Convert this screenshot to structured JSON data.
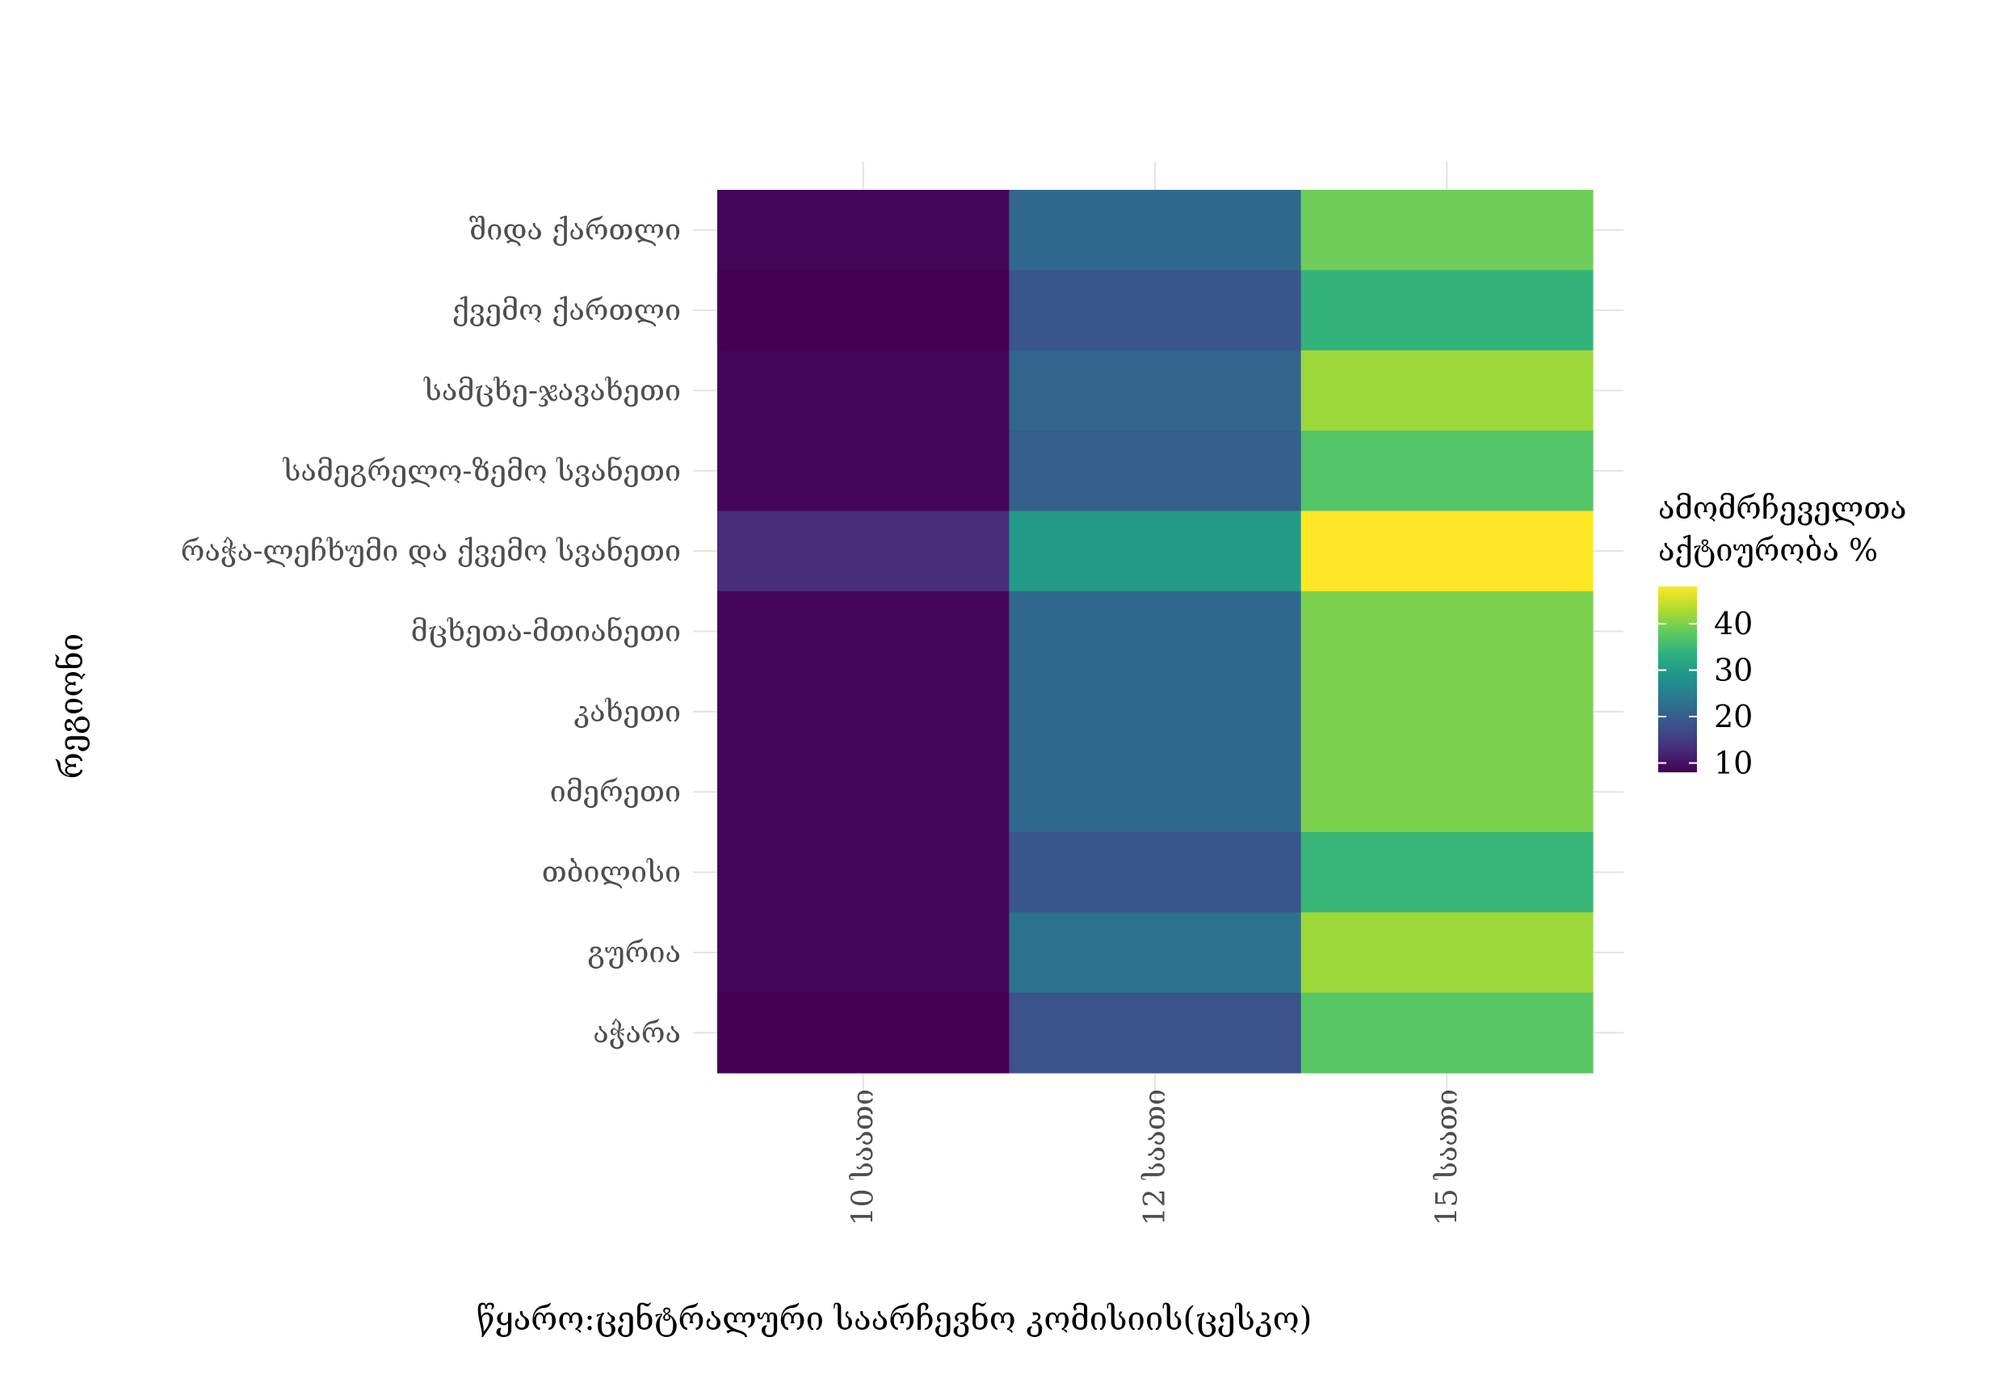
{
  "chart_data": {
    "type": "heatmap",
    "x_categories": [
      "10 საათი",
      "12 საათი",
      "15 საათი"
    ],
    "y_categories": [
      "შიდა ქართლი",
      "ქვემო ქართლი",
      "სამცხე-ჯავახეთი",
      "სამეგრელო-ზემო სვანეთი",
      "რაჭა-ლეჩხუმი და ქვემო სვანეთი",
      "მცხეთა-მთიანეთი",
      "კახეთი",
      "იმერეთი",
      "თბილისი",
      "გურია",
      "აჭარა"
    ],
    "values": [
      [
        8.5,
        21.5,
        39.0
      ],
      [
        8.0,
        18.5,
        34.0
      ],
      [
        8.5,
        21.0,
        42.0
      ],
      [
        8.5,
        20.0,
        37.0
      ],
      [
        13.0,
        29.5,
        48.0
      ],
      [
        8.5,
        21.5,
        40.0
      ],
      [
        8.5,
        21.5,
        40.0
      ],
      [
        8.5,
        21.5,
        40.0
      ],
      [
        8.5,
        18.5,
        34.5
      ],
      [
        8.5,
        23.0,
        42.0
      ],
      [
        8.0,
        18.0,
        37.5
      ]
    ],
    "xlabel": "წყარო:ცენტრალური საარჩევნო კომისიის(ცესკო)",
    "ylabel": "რეგიონი",
    "legend_title": [
      "ამომრჩეველთა",
      "აქტიურობა %"
    ],
    "legend_ticks": [
      10,
      20,
      30,
      40
    ],
    "color_range": [
      8,
      48
    ],
    "colormap": "viridis",
    "legend_position": "right",
    "grid": true
  }
}
